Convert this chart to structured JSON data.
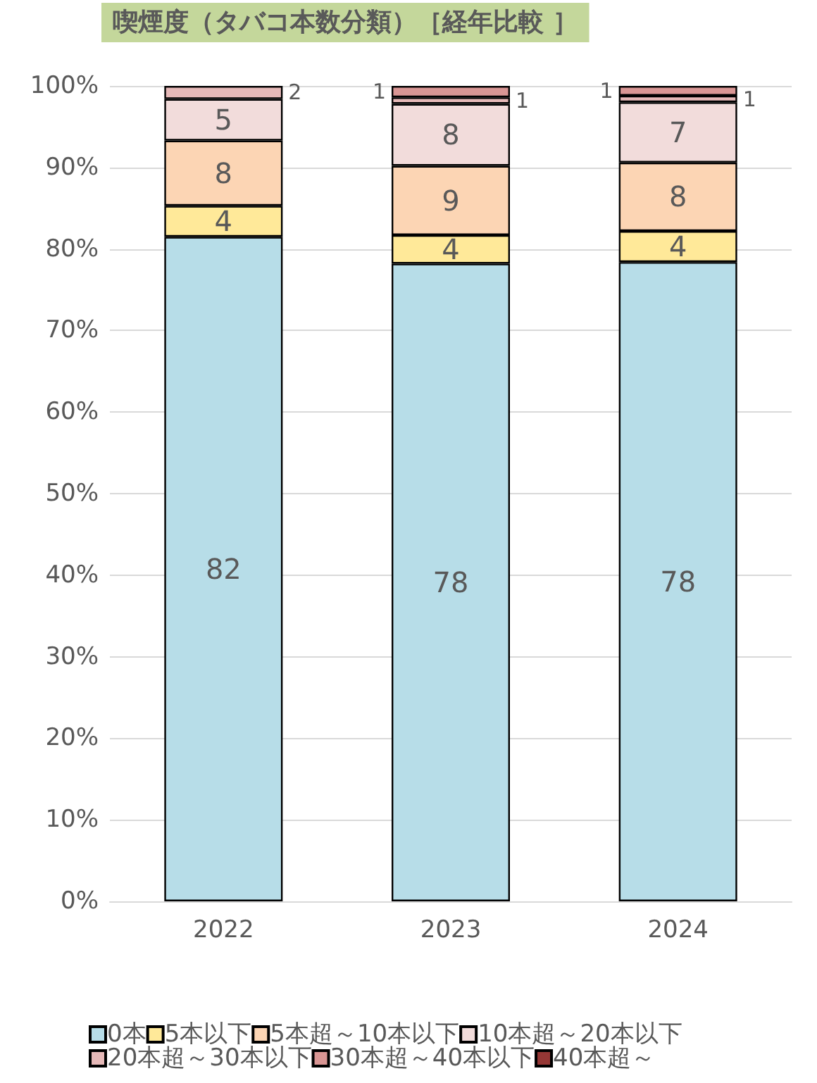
{
  "chart_data": {
    "type": "bar",
    "stacked": true,
    "title": "喫煙度（タバコ本数分類）［経年比較 ］",
    "categories": [
      "2022",
      "2023",
      "2024"
    ],
    "series": [
      {
        "name": "0本",
        "color": "#b7dde8",
        "values": [
          81.5,
          78.2,
          78.4
        ],
        "value_labels": [
          "82",
          "78",
          "78"
        ]
      },
      {
        "name": "5本以下",
        "color": "#ffe999",
        "values": [
          3.8,
          3.5,
          3.8
        ],
        "value_labels": [
          "4",
          "4",
          "4"
        ]
      },
      {
        "name": "5本超～10本以下",
        "color": "#fcd5b4",
        "values": [
          8.0,
          8.5,
          8.4
        ],
        "value_labels": [
          "8",
          "9",
          "8"
        ]
      },
      {
        "name": "10本超～20本以下",
        "color": "#f2dcdb",
        "values": [
          5.1,
          7.6,
          7.4
        ],
        "value_labels": [
          "5",
          "8",
          "7"
        ]
      },
      {
        "name": "20本超～30本以下",
        "color": "#e6b9b8",
        "values": [
          1.6,
          0.8,
          0.8
        ],
        "value_labels": [
          "2",
          "1",
          "1"
        ]
      },
      {
        "name": "30本超～40本以下",
        "color": "#d99694",
        "values": [
          null,
          1.4,
          1.2
        ],
        "value_labels": [
          null,
          "1",
          "1"
        ]
      },
      {
        "name": "40本超～",
        "color": "#953735",
        "values": [
          null,
          null,
          null
        ]
      }
    ],
    "ylim": [
      0,
      100
    ],
    "yticks": [
      {
        "value": 0,
        "label": "0%"
      },
      {
        "value": 10,
        "label": "10%"
      },
      {
        "value": 20,
        "label": "20%"
      },
      {
        "value": 30,
        "label": "30%"
      },
      {
        "value": 40,
        "label": "40%"
      },
      {
        "value": 50,
        "label": "50%"
      },
      {
        "value": 60,
        "label": "60%"
      },
      {
        "value": 70,
        "label": "70%"
      },
      {
        "value": 80,
        "label": "80%"
      },
      {
        "value": 90,
        "label": "90%"
      },
      {
        "value": 100,
        "label": "100%"
      }
    ],
    "grid": "y",
    "legend": "bottom"
  }
}
